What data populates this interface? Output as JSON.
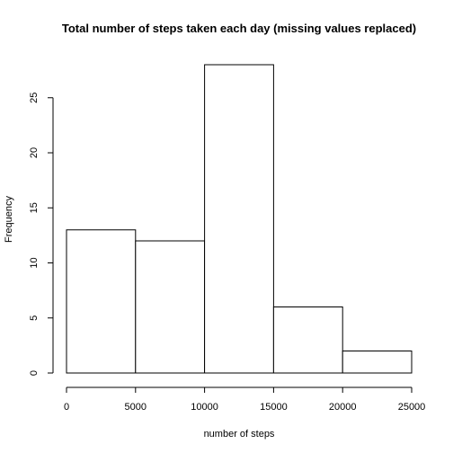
{
  "chart_data": {
    "type": "bar",
    "title": "Total number of steps taken each day (missing values replaced)",
    "xlabel": "number of steps",
    "ylabel": "Frequency",
    "bins": [
      {
        "start": 0,
        "end": 5000,
        "count": 13
      },
      {
        "start": 5000,
        "end": 10000,
        "count": 12
      },
      {
        "start": 10000,
        "end": 15000,
        "count": 28
      },
      {
        "start": 15000,
        "end": 20000,
        "count": 6
      },
      {
        "start": 20000,
        "end": 25000,
        "count": 2
      }
    ],
    "xlim": [
      0,
      25000
    ],
    "ylim": [
      0,
      28
    ],
    "x_ticks": [
      0,
      5000,
      10000,
      15000,
      20000,
      25000
    ],
    "x_tick_labels": [
      "0",
      "5000",
      "10000",
      "15000",
      "20000",
      "25000"
    ],
    "y_ticks": [
      0,
      5,
      10,
      15,
      20,
      25
    ],
    "y_tick_labels": [
      "0",
      "5",
      "10",
      "15",
      "20",
      "25"
    ],
    "grid": false,
    "legend": "none",
    "colors": {
      "bar_fill": "#ffffff",
      "bar_stroke": "#000000"
    }
  }
}
